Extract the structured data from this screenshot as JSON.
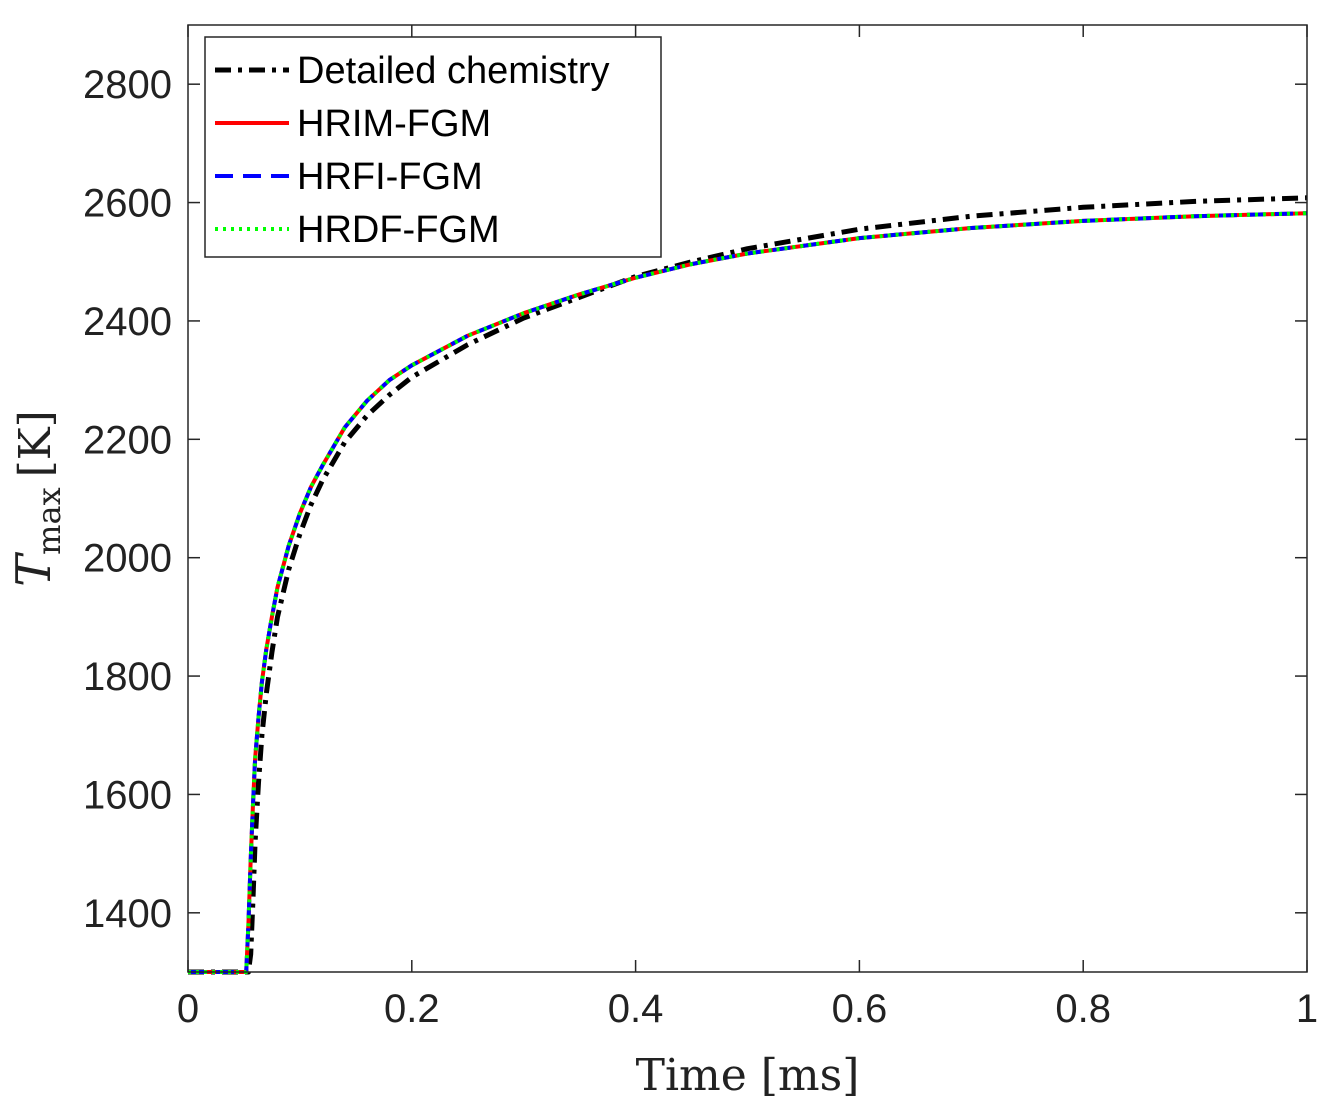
{
  "chart_data": {
    "type": "line",
    "xlabel": "Time [ms]",
    "ylabel": {
      "symbol": "T",
      "subscript": "max",
      "unit": "[K]"
    },
    "xlim": [
      0,
      1
    ],
    "ylim": [
      1300,
      2900
    ],
    "xticks": [
      {
        "v": 0,
        "label": "0"
      },
      {
        "v": 0.2,
        "label": "0.2"
      },
      {
        "v": 0.4,
        "label": "0.4"
      },
      {
        "v": 0.6,
        "label": "0.6"
      },
      {
        "v": 0.8,
        "label": "0.8"
      },
      {
        "v": 1,
        "label": "1"
      }
    ],
    "yticks": [
      {
        "v": 1400,
        "label": "1400"
      },
      {
        "v": 1600,
        "label": "1600"
      },
      {
        "v": 1800,
        "label": "1800"
      },
      {
        "v": 2000,
        "label": "2000"
      },
      {
        "v": 2200,
        "label": "2200"
      },
      {
        "v": 2400,
        "label": "2400"
      },
      {
        "v": 2600,
        "label": "2600"
      },
      {
        "v": 2800,
        "label": "2800"
      }
    ],
    "grid": false,
    "legend_position": "top-left",
    "series": [
      {
        "name": "Detailed chemistry",
        "color": "#000000",
        "style": "dashdot",
        "x": [
          0,
          0.054,
          0.056,
          0.058,
          0.06,
          0.063,
          0.066,
          0.07,
          0.075,
          0.08,
          0.09,
          0.1,
          0.11,
          0.12,
          0.14,
          0.16,
          0.18,
          0.2,
          0.25,
          0.3,
          0.35,
          0.4,
          0.45,
          0.5,
          0.6,
          0.7,
          0.8,
          0.9,
          1.0
        ],
        "y": [
          1300,
          1300,
          1330,
          1420,
          1520,
          1620,
          1700,
          1770,
          1840,
          1900,
          1980,
          2040,
          2090,
          2130,
          2195,
          2240,
          2275,
          2305,
          2360,
          2405,
          2440,
          2475,
          2500,
          2522,
          2555,
          2577,
          2592,
          2602,
          2608
        ]
      },
      {
        "name": "HRIM-FGM",
        "color": "#ff0000",
        "style": "solid",
        "x": [
          0,
          0.052,
          0.054,
          0.056,
          0.058,
          0.06,
          0.063,
          0.066,
          0.07,
          0.075,
          0.08,
          0.09,
          0.1,
          0.11,
          0.12,
          0.14,
          0.16,
          0.18,
          0.2,
          0.25,
          0.3,
          0.35,
          0.4,
          0.45,
          0.5,
          0.6,
          0.7,
          0.8,
          0.9,
          1.0
        ],
        "y": [
          1300,
          1300,
          1380,
          1490,
          1580,
          1660,
          1730,
          1790,
          1845,
          1900,
          1950,
          2020,
          2075,
          2120,
          2155,
          2220,
          2265,
          2300,
          2325,
          2375,
          2413,
          2445,
          2473,
          2496,
          2514,
          2540,
          2557,
          2569,
          2577,
          2582
        ]
      },
      {
        "name": "HRFI-FGM",
        "color": "#0000ff",
        "style": "dashed",
        "x": [
          0,
          0.052,
          0.054,
          0.056,
          0.058,
          0.06,
          0.063,
          0.066,
          0.07,
          0.075,
          0.08,
          0.09,
          0.1,
          0.11,
          0.12,
          0.14,
          0.16,
          0.18,
          0.2,
          0.25,
          0.3,
          0.35,
          0.4,
          0.45,
          0.5,
          0.6,
          0.7,
          0.8,
          0.9,
          1.0
        ],
        "y": [
          1300,
          1300,
          1380,
          1490,
          1580,
          1660,
          1730,
          1790,
          1845,
          1900,
          1950,
          2020,
          2075,
          2120,
          2155,
          2220,
          2265,
          2300,
          2325,
          2375,
          2413,
          2445,
          2473,
          2496,
          2514,
          2540,
          2557,
          2569,
          2577,
          2582
        ]
      },
      {
        "name": "HRDF-FGM",
        "color": "#00ff00",
        "style": "dotted",
        "x": [
          0,
          0.052,
          0.054,
          0.056,
          0.058,
          0.06,
          0.063,
          0.066,
          0.07,
          0.075,
          0.08,
          0.09,
          0.1,
          0.11,
          0.12,
          0.14,
          0.16,
          0.18,
          0.2,
          0.25,
          0.3,
          0.35,
          0.4,
          0.45,
          0.5,
          0.6,
          0.7,
          0.8,
          0.9,
          1.0
        ],
        "y": [
          1300,
          1300,
          1380,
          1490,
          1580,
          1660,
          1730,
          1790,
          1845,
          1900,
          1950,
          2020,
          2075,
          2120,
          2155,
          2220,
          2265,
          2300,
          2325,
          2375,
          2413,
          2445,
          2473,
          2496,
          2514,
          2540,
          2557,
          2569,
          2577,
          2582
        ]
      }
    ]
  }
}
